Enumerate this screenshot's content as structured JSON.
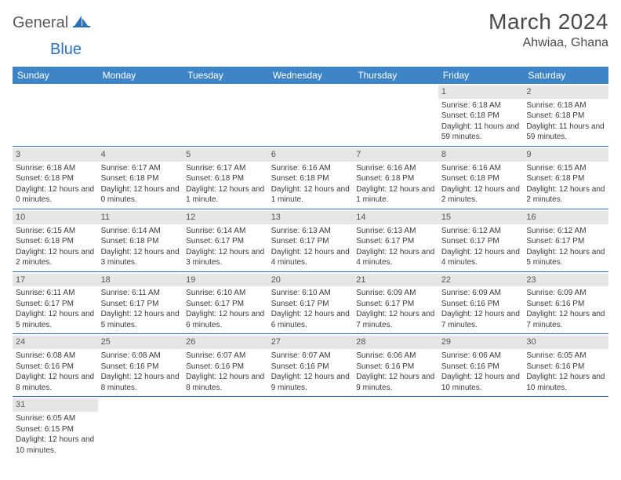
{
  "logo": {
    "textGeneral": "General",
    "textBlue": "Blue"
  },
  "title": "March 2024",
  "location": "Ahwiaa, Ghana",
  "colors": {
    "headerBg": "#3d85c6",
    "headerText": "#ffffff",
    "dayNumBg": "#e6e6e6",
    "rowBorder": "#2d6fb8",
    "logoBlue": "#2d6fb8",
    "logoGray": "#5a5a5a"
  },
  "weekdays": [
    "Sunday",
    "Monday",
    "Tuesday",
    "Wednesday",
    "Thursday",
    "Friday",
    "Saturday"
  ],
  "weeks": [
    [
      null,
      null,
      null,
      null,
      null,
      {
        "n": "1",
        "sr": "6:18 AM",
        "ss": "6:18 PM",
        "dl": "11 hours and 59 minutes."
      },
      {
        "n": "2",
        "sr": "6:18 AM",
        "ss": "6:18 PM",
        "dl": "11 hours and 59 minutes."
      }
    ],
    [
      {
        "n": "3",
        "sr": "6:18 AM",
        "ss": "6:18 PM",
        "dl": "12 hours and 0 minutes."
      },
      {
        "n": "4",
        "sr": "6:17 AM",
        "ss": "6:18 PM",
        "dl": "12 hours and 0 minutes."
      },
      {
        "n": "5",
        "sr": "6:17 AM",
        "ss": "6:18 PM",
        "dl": "12 hours and 1 minute."
      },
      {
        "n": "6",
        "sr": "6:16 AM",
        "ss": "6:18 PM",
        "dl": "12 hours and 1 minute."
      },
      {
        "n": "7",
        "sr": "6:16 AM",
        "ss": "6:18 PM",
        "dl": "12 hours and 1 minute."
      },
      {
        "n": "8",
        "sr": "6:16 AM",
        "ss": "6:18 PM",
        "dl": "12 hours and 2 minutes."
      },
      {
        "n": "9",
        "sr": "6:15 AM",
        "ss": "6:18 PM",
        "dl": "12 hours and 2 minutes."
      }
    ],
    [
      {
        "n": "10",
        "sr": "6:15 AM",
        "ss": "6:18 PM",
        "dl": "12 hours and 2 minutes."
      },
      {
        "n": "11",
        "sr": "6:14 AM",
        "ss": "6:18 PM",
        "dl": "12 hours and 3 minutes."
      },
      {
        "n": "12",
        "sr": "6:14 AM",
        "ss": "6:17 PM",
        "dl": "12 hours and 3 minutes."
      },
      {
        "n": "13",
        "sr": "6:13 AM",
        "ss": "6:17 PM",
        "dl": "12 hours and 4 minutes."
      },
      {
        "n": "14",
        "sr": "6:13 AM",
        "ss": "6:17 PM",
        "dl": "12 hours and 4 minutes."
      },
      {
        "n": "15",
        "sr": "6:12 AM",
        "ss": "6:17 PM",
        "dl": "12 hours and 4 minutes."
      },
      {
        "n": "16",
        "sr": "6:12 AM",
        "ss": "6:17 PM",
        "dl": "12 hours and 5 minutes."
      }
    ],
    [
      {
        "n": "17",
        "sr": "6:11 AM",
        "ss": "6:17 PM",
        "dl": "12 hours and 5 minutes."
      },
      {
        "n": "18",
        "sr": "6:11 AM",
        "ss": "6:17 PM",
        "dl": "12 hours and 5 minutes."
      },
      {
        "n": "19",
        "sr": "6:10 AM",
        "ss": "6:17 PM",
        "dl": "12 hours and 6 minutes."
      },
      {
        "n": "20",
        "sr": "6:10 AM",
        "ss": "6:17 PM",
        "dl": "12 hours and 6 minutes."
      },
      {
        "n": "21",
        "sr": "6:09 AM",
        "ss": "6:17 PM",
        "dl": "12 hours and 7 minutes."
      },
      {
        "n": "22",
        "sr": "6:09 AM",
        "ss": "6:16 PM",
        "dl": "12 hours and 7 minutes."
      },
      {
        "n": "23",
        "sr": "6:09 AM",
        "ss": "6:16 PM",
        "dl": "12 hours and 7 minutes."
      }
    ],
    [
      {
        "n": "24",
        "sr": "6:08 AM",
        "ss": "6:16 PM",
        "dl": "12 hours and 8 minutes."
      },
      {
        "n": "25",
        "sr": "6:08 AM",
        "ss": "6:16 PM",
        "dl": "12 hours and 8 minutes."
      },
      {
        "n": "26",
        "sr": "6:07 AM",
        "ss": "6:16 PM",
        "dl": "12 hours and 8 minutes."
      },
      {
        "n": "27",
        "sr": "6:07 AM",
        "ss": "6:16 PM",
        "dl": "12 hours and 9 minutes."
      },
      {
        "n": "28",
        "sr": "6:06 AM",
        "ss": "6:16 PM",
        "dl": "12 hours and 9 minutes."
      },
      {
        "n": "29",
        "sr": "6:06 AM",
        "ss": "6:16 PM",
        "dl": "12 hours and 10 minutes."
      },
      {
        "n": "30",
        "sr": "6:05 AM",
        "ss": "6:16 PM",
        "dl": "12 hours and 10 minutes."
      }
    ],
    [
      {
        "n": "31",
        "sr": "6:05 AM",
        "ss": "6:15 PM",
        "dl": "12 hours and 10 minutes."
      },
      null,
      null,
      null,
      null,
      null,
      null
    ]
  ],
  "labels": {
    "sunrise": "Sunrise: ",
    "sunset": "Sunset: ",
    "daylight": "Daylight: "
  }
}
